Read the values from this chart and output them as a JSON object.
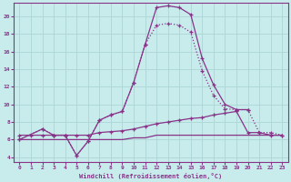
{
  "xlabel": "Windchill (Refroidissement éolien,°C)",
  "bg_color": "#c8ecec",
  "grid_color": "#b0d8d8",
  "line_color": "#883388",
  "xlim": [
    -0.5,
    23.5
  ],
  "ylim": [
    3.5,
    21.5
  ],
  "xticks": [
    0,
    1,
    2,
    3,
    4,
    5,
    6,
    7,
    8,
    9,
    10,
    11,
    12,
    13,
    14,
    15,
    16,
    17,
    18,
    19,
    20,
    21,
    22,
    23
  ],
  "yticks": [
    4,
    6,
    8,
    10,
    12,
    14,
    16,
    18,
    20
  ],
  "curve_solid_x": [
    0,
    2,
    3,
    4,
    5,
    6,
    7,
    8,
    9,
    10,
    11,
    12,
    13,
    14,
    15,
    16,
    17,
    18,
    19,
    20
  ],
  "curve_solid_y": [
    6.0,
    7.2,
    6.5,
    6.5,
    4.2,
    5.8,
    8.2,
    8.8,
    9.2,
    12.5,
    16.8,
    21.0,
    21.2,
    21.0,
    20.2,
    15.2,
    12.2,
    10.0,
    9.4,
    9.4
  ],
  "curve_dot_x": [
    0,
    2,
    3,
    4,
    5,
    6,
    7,
    8,
    9,
    10,
    11,
    12,
    13,
    14,
    15,
    16,
    17,
    18,
    19,
    20,
    21,
    22,
    23
  ],
  "curve_dot_y": [
    6.0,
    7.2,
    6.5,
    6.5,
    4.2,
    5.8,
    8.2,
    8.8,
    9.2,
    12.5,
    16.8,
    19.0,
    19.2,
    19.0,
    18.2,
    13.8,
    11.0,
    9.5,
    9.4,
    9.4,
    6.8,
    6.8,
    6.5
  ],
  "flat1_x": [
    0,
    1,
    2,
    3,
    4,
    5,
    6,
    7,
    8,
    9,
    10,
    11,
    12,
    13,
    14,
    15,
    16,
    17,
    18,
    19,
    20,
    21,
    22,
    23
  ],
  "flat1_y": [
    6.5,
    6.5,
    6.5,
    6.5,
    6.5,
    6.5,
    6.5,
    6.8,
    6.9,
    7.0,
    7.2,
    7.5,
    7.8,
    8.0,
    8.2,
    8.4,
    8.5,
    8.8,
    9.0,
    9.2,
    6.8,
    6.8,
    6.5,
    6.5
  ],
  "flat2_x": [
    0,
    1,
    2,
    3,
    4,
    5,
    6,
    7,
    8,
    9,
    10,
    11,
    12,
    13,
    14,
    15,
    16,
    17,
    18,
    19,
    20,
    21,
    22,
    23
  ],
  "flat2_y": [
    6.0,
    6.0,
    6.0,
    6.0,
    6.0,
    6.0,
    6.0,
    6.0,
    6.0,
    6.0,
    6.2,
    6.2,
    6.5,
    6.5,
    6.5,
    6.5,
    6.5,
    6.5,
    6.5,
    6.5,
    6.5,
    6.5,
    6.5,
    6.5
  ]
}
